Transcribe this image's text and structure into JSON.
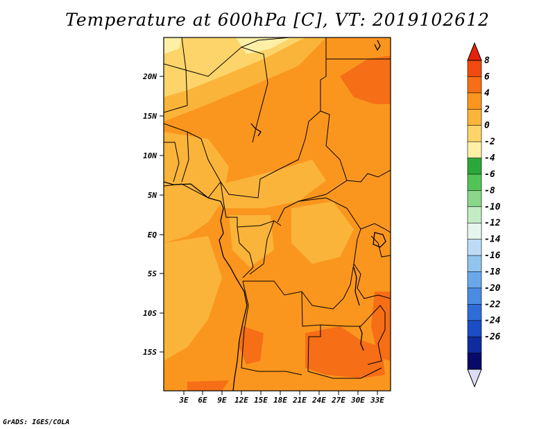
{
  "title": "Temperature at 600hPa [C], VT: 2019102612",
  "credit": "GrADS: IGES/COLA",
  "map": {
    "lat_labels": [
      "20N",
      "15N",
      "10N",
      "5N",
      "EQ",
      "5S",
      "10S",
      "15S"
    ],
    "lon_labels": [
      "3E",
      "6E",
      "9E",
      "12E",
      "15E",
      "18E",
      "21E",
      "24E",
      "27E",
      "30E",
      "33E"
    ]
  },
  "colorbar": {
    "levels": [
      "8",
      "6",
      "4",
      "2",
      "0",
      "-2",
      "-4",
      "-6",
      "-8",
      "-10",
      "-12",
      "-14",
      "-16",
      "-18",
      "-20",
      "-22",
      "-24",
      "-26"
    ],
    "colors": [
      "#e8220a",
      "#f04a10",
      "#f66e16",
      "#fa961e",
      "#fbb43a",
      "#fcd46a",
      "#fdf0a6",
      "#2ca83a",
      "#52c456",
      "#8ad68a",
      "#c4ecc4",
      "#e6f6ee",
      "#bcdcf6",
      "#92c4f0",
      "#6aa8ea",
      "#4a8ce4",
      "#2e6cd8",
      "#1a4cc4",
      "#0e2c9c",
      "#080a6a"
    ],
    "lower_extend_color": "#dcdcf4"
  }
}
